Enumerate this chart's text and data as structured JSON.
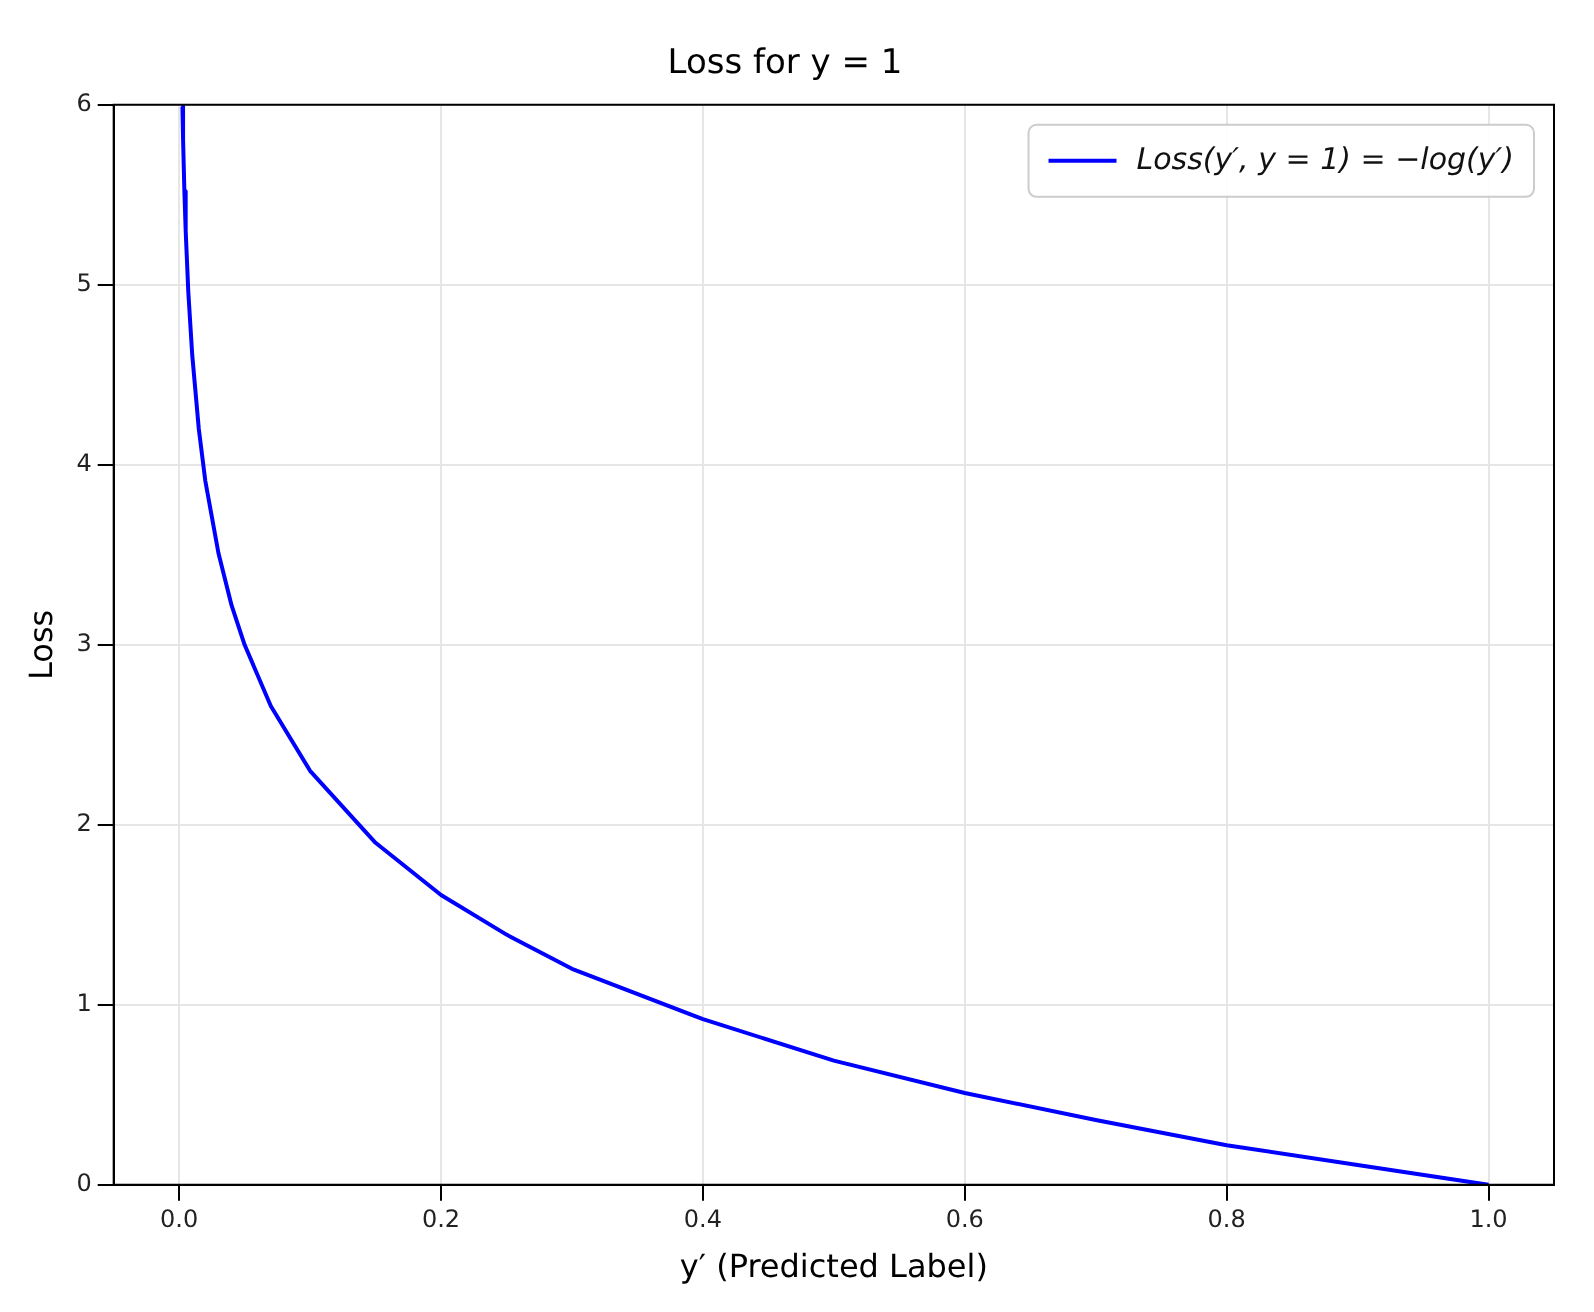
{
  "chart_data": {
    "type": "line",
    "title": "Loss for y = 1",
    "xlabel": "y′ (Predicted Label)",
    "ylabel": "Loss",
    "series": [
      {
        "name": "Loss(y′, y = 1) = −log(y′)",
        "color": "#0000ff",
        "x": [
          0.0025,
          0.003,
          0.004,
          0.005,
          0.007,
          0.01,
          0.015,
          0.02,
          0.03,
          0.04,
          0.05,
          0.07,
          0.1,
          0.15,
          0.2,
          0.25,
          0.3,
          0.4,
          0.5,
          0.6,
          0.7,
          0.8,
          0.9,
          1.0
        ],
        "values": [
          5.99,
          5.81,
          5.52,
          5.3,
          4.96,
          4.61,
          4.2,
          3.91,
          3.51,
          3.22,
          3.0,
          2.66,
          2.3,
          1.9,
          1.61,
          1.39,
          1.2,
          0.92,
          0.69,
          0.51,
          0.36,
          0.22,
          0.11,
          0
        ]
      }
    ],
    "xlim": [
      -0.05,
      1.05
    ],
    "xticks": [
      {
        "value": 0,
        "label": "0.0"
      },
      0.2,
      0.4,
      0.6,
      0.8,
      {
        "value": 1,
        "label": "1.0"
      }
    ],
    "ylim": [
      0,
      6
    ],
    "yticks": [
      0,
      1,
      2,
      3,
      4,
      5,
      6
    ],
    "grid": true,
    "legend": "top right",
    "marker": "none",
    "line_style": "solid"
  }
}
